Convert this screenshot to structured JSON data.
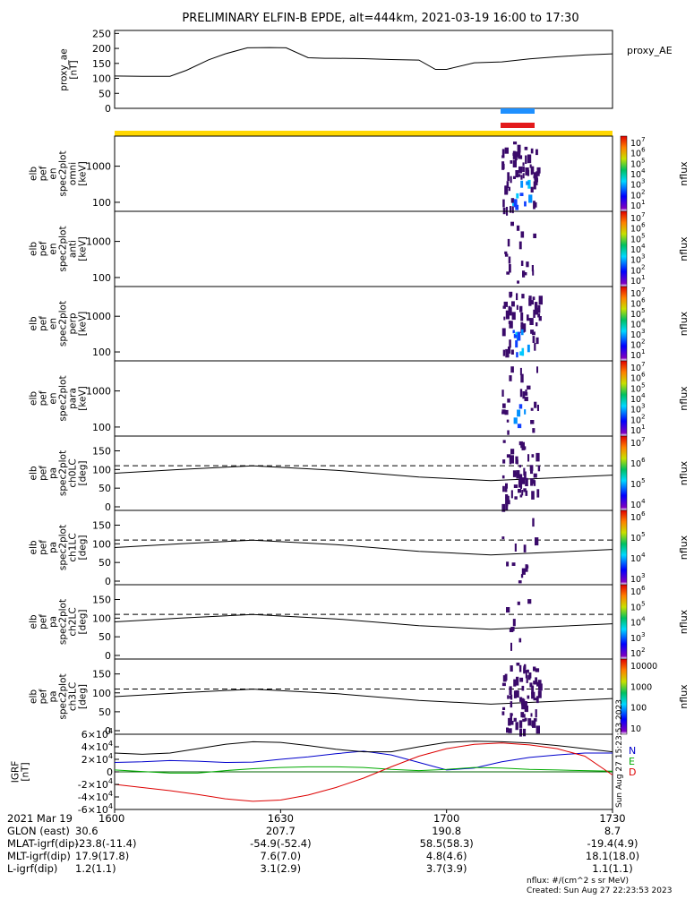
{
  "title": "PRELIMINARY ELFIN-B EPDE, alt=444km, 2021-03-19 16:00 to 17:30",
  "ae_panel": {
    "ylabel_lines": [
      "proxy_ae",
      "[nT]"
    ],
    "legend": "proxy_AE",
    "yticks": [
      "250",
      "200",
      "150",
      "100",
      "50",
      "0"
    ],
    "chart_data": {
      "type": "line",
      "xlabel": "",
      "ylabel": "proxy_ae [nT]",
      "ylim": [
        0,
        260
      ],
      "x_minutes_from_1600": [
        0,
        5,
        10,
        13,
        17,
        20,
        24,
        28,
        31,
        35,
        38,
        40,
        45,
        50,
        55,
        58,
        60,
        65,
        70,
        75,
        80,
        85,
        90
      ],
      "values": [
        108,
        107,
        107,
        127,
        162,
        182,
        202,
        203,
        202,
        169,
        167,
        167,
        166,
        163,
        161,
        130,
        130,
        152,
        155,
        165,
        172,
        178,
        182
      ]
    }
  },
  "bars": {
    "colors": [
      "#ffd700",
      "#1e90ff",
      "#e31a1c"
    ]
  },
  "spec_panels": [
    {
      "id": "omni",
      "ylabel_lines": [
        "elb",
        "pef",
        "en",
        "spec2plot",
        "omni",
        "[keV]"
      ],
      "yticks": [
        "1000",
        "100"
      ]
    },
    {
      "id": "anti",
      "ylabel_lines": [
        "elb",
        "pef",
        "en",
        "spec2plot",
        "anti",
        "[keV]"
      ],
      "yticks": [
        "1000",
        "100"
      ]
    },
    {
      "id": "perp",
      "ylabel_lines": [
        "elb",
        "pef",
        "en",
        "spec2plot",
        "perp",
        "[keV]"
      ],
      "yticks": [
        "1000",
        "100"
      ]
    },
    {
      "id": "para",
      "ylabel_lines": [
        "elb",
        "pef",
        "en",
        "spec2plot",
        "para",
        "[keV]"
      ],
      "yticks": [
        "1000",
        "100"
      ]
    }
  ],
  "pa_panels": [
    {
      "id": "ch0LC",
      "ylabel_lines": [
        "elb",
        "pef",
        "pa",
        "spec2plot",
        "ch0LC",
        "[deg]"
      ],
      "yticks": [
        "150",
        "100",
        "50",
        "0"
      ]
    },
    {
      "id": "ch1LC",
      "ylabel_lines": [
        "elb",
        "pef",
        "pa",
        "spec2plot",
        "ch1LC",
        "[deg]"
      ],
      "yticks": [
        "150",
        "100",
        "50",
        "0"
      ]
    },
    {
      "id": "ch2LC",
      "ylabel_lines": [
        "elb",
        "pef",
        "pa",
        "spec2plot",
        "ch2LC",
        "[deg]"
      ],
      "yticks": [
        "150",
        "100",
        "50",
        "0"
      ]
    },
    {
      "id": "ch3LC",
      "ylabel_lines": [
        "elb",
        "pef",
        "pa",
        "spec2plot",
        "ch3LC",
        "[deg]"
      ],
      "yticks": [
        "150",
        "100",
        "50",
        "0"
      ]
    }
  ],
  "colorbars": [
    {
      "label": "nflux",
      "exps": [
        "7",
        "6",
        "5",
        "4",
        "3",
        "2",
        "1"
      ]
    },
    {
      "label": "nflux",
      "exps": [
        "7",
        "6",
        "5",
        "4",
        "3",
        "2",
        "1"
      ]
    },
    {
      "label": "nflux",
      "exps": [
        "7",
        "6",
        "5",
        "4",
        "3",
        "2",
        "1"
      ]
    },
    {
      "label": "nflux",
      "exps": [
        "7",
        "6",
        "5",
        "4",
        "3",
        "2",
        "1"
      ]
    },
    {
      "label": "nflux",
      "exps": [
        "7",
        "6",
        "5",
        "4"
      ]
    },
    {
      "label": "nflux",
      "exps": [
        "6",
        "5",
        "4",
        "3"
      ]
    },
    {
      "label": "nflux",
      "exps": [
        "6",
        "5",
        "4",
        "3",
        "2"
      ]
    },
    {
      "label": "nflux",
      "plain": [
        "10000",
        "1000",
        "100",
        "10"
      ]
    }
  ],
  "igrf_panel": {
    "ylabel_lines": [
      "IGRF",
      "[nT]"
    ],
    "ytick_mantissas": [
      "6",
      "4",
      "2",
      "0",
      "-2",
      "-4",
      "-6"
    ],
    "ytick_suffix": "×10",
    "ytick_exp": "4",
    "legend": [
      "N",
      "E",
      "D"
    ],
    "legend_colors": [
      "#0000cc",
      "#00aa00",
      "#dd0000"
    ],
    "side_text": "Sun Aug 27 15:23:53 2023",
    "chart_data": {
      "type": "line",
      "ylabel": "IGRF [nT]",
      "ylim": [
        -60000,
        60000
      ],
      "x_minutes_from_1600": [
        0,
        5,
        10,
        15,
        20,
        25,
        30,
        35,
        40,
        45,
        50,
        55,
        60,
        65,
        70,
        75,
        80,
        85,
        90
      ],
      "series": [
        {
          "name": "N",
          "color": "#0000cc",
          "values": [
            15000,
            16000,
            18000,
            17000,
            15000,
            15500,
            20000,
            24000,
            29000,
            33000,
            27000,
            15000,
            3000,
            6000,
            16000,
            23000,
            27000,
            30000,
            30000
          ]
        },
        {
          "name": "E",
          "color": "#00aa00",
          "values": [
            3000,
            500,
            -2000,
            -2000,
            2000,
            5000,
            7000,
            8000,
            8000,
            7000,
            4000,
            2000,
            4000,
            7000,
            6000,
            4000,
            3000,
            2000,
            1000
          ]
        },
        {
          "name": "D",
          "color": "#dd0000",
          "values": [
            -20000,
            -25000,
            -30000,
            -36000,
            -43000,
            -47000,
            -45000,
            -37000,
            -25000,
            -10000,
            8000,
            25000,
            37000,
            44000,
            46000,
            43000,
            37000,
            25000,
            -5000
          ]
        },
        {
          "name": "",
          "color": "#000000",
          "values": [
            30000,
            28000,
            30000,
            37000,
            44000,
            48000,
            47000,
            42000,
            36000,
            32000,
            32000,
            40000,
            47000,
            49000,
            48000,
            46000,
            42000,
            37000,
            32000
          ]
        }
      ]
    }
  },
  "footer": {
    "row_labels": [
      "2021 Mar 19",
      "GLON (east)",
      "MLAT-igrf(dip)",
      "MLT-igrf(dip)",
      "L-igrf(dip)"
    ],
    "columns": [
      {
        "time": "1600",
        "values": [
          "30.6",
          "-23.8(-11.4)",
          "17.9(17.8)",
          "1.2(1.1)"
        ]
      },
      {
        "time": "1630",
        "values": [
          "207.7",
          "-54.9(-52.4)",
          "7.6(7.0)",
          "3.1(2.9)"
        ]
      },
      {
        "time": "1700",
        "values": [
          "190.8",
          "58.5(58.3)",
          "4.8(4.6)",
          "3.7(3.9)"
        ]
      },
      {
        "time": "1730",
        "values": [
          "8.7",
          "-19.4(4.9)",
          "18.1(18.0)",
          "1.1(1.1)"
        ]
      }
    ],
    "note1": "nflux: #/(cm^2 s sr MeV)",
    "note2": "Created: Sun Aug 27 22:23:53 2023"
  }
}
